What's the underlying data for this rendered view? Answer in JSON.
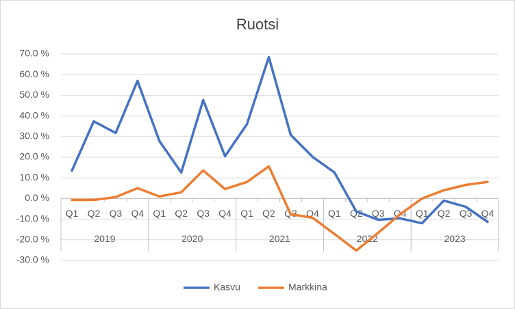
{
  "chart_data": {
    "type": "line",
    "title": "Ruotsi",
    "categories": [
      "Q1",
      "Q2",
      "Q3",
      "Q4",
      "Q1",
      "Q2",
      "Q3",
      "Q4",
      "Q1",
      "Q2",
      "Q3",
      "Q4",
      "Q1",
      "Q2",
      "Q3",
      "Q4",
      "Q1",
      "Q2",
      "Q3",
      "Q4"
    ],
    "groups": [
      "2019",
      "2020",
      "2021",
      "2022",
      "2023"
    ],
    "series": [
      {
        "name": "Kasvu",
        "color": "#4472c4",
        "values": [
          13.5,
          37.4,
          31.8,
          57,
          27.8,
          12.6,
          47.7,
          20.5,
          36,
          68.5,
          30.8,
          20.2,
          12.6,
          -6.3,
          -10.3,
          -9.6,
          -12,
          -1,
          -4,
          -11.3
        ]
      },
      {
        "name": "Markkina",
        "color": "#ed7d31",
        "values": [
          -0.7,
          -0.7,
          0.7,
          5,
          1,
          3,
          13.6,
          4.6,
          8,
          15.6,
          -7.6,
          -9.3,
          -17.2,
          -25.2,
          -16.6,
          -7.6,
          0,
          4,
          6.6,
          8
        ]
      }
    ],
    "ylim": [
      -30,
      70
    ],
    "yticks": [
      {
        "value": -30,
        "label": "-30.0 %"
      },
      {
        "value": -20,
        "label": "-20.0 %"
      },
      {
        "value": -10,
        "label": "-10.0 %"
      },
      {
        "value": 0,
        "label": "0.0 %"
      },
      {
        "value": 10,
        "label": "10.0 %"
      },
      {
        "value": 20,
        "label": "20.0 %"
      },
      {
        "value": 30,
        "label": "30.0 %"
      },
      {
        "value": 40,
        "label": "40.0 %"
      },
      {
        "value": 50,
        "label": "50.0 %"
      },
      {
        "value": 60,
        "label": "60.0 %"
      },
      {
        "value": 70,
        "label": "70.0 %"
      }
    ],
    "grid": true,
    "legend": "bottom"
  }
}
